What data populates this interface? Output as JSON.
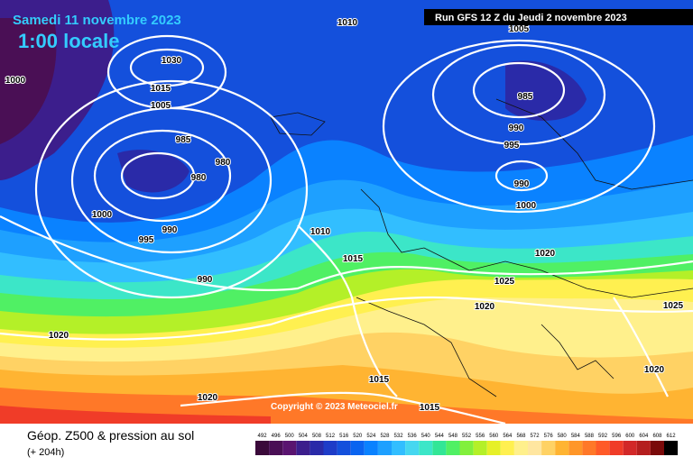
{
  "header": {
    "date": "Samedi 11 novembre 2023",
    "time": "1:00 locale",
    "run": "Run GFS 12 Z du Jeudi 2 novembre 2023"
  },
  "copyright": "Copyright © 2023 Meteociel.fr",
  "footer": {
    "title": "Géop. Z500 & pression au sol",
    "lead": "(+ 204h)"
  },
  "isobar_labels": [
    "1010",
    "1005",
    "1000",
    "1030",
    "1015",
    "1005",
    "985",
    "980",
    "980",
    "985",
    "990",
    "995",
    "990",
    "1000",
    "1000",
    "990",
    "995",
    "1010",
    "1015",
    "1020",
    "1025",
    "1020",
    "1025",
    "990",
    "1020",
    "1020",
    "1015",
    "1015",
    "1020"
  ],
  "colorbar": {
    "values": [
      492,
      496,
      500,
      504,
      508,
      512,
      516,
      520,
      524,
      528,
      532,
      536,
      540,
      544,
      548,
      552,
      556,
      560,
      564,
      568,
      572,
      576,
      580,
      584,
      588,
      592,
      596,
      600,
      604,
      608,
      612
    ],
    "colors": [
      "#3a0a3a",
      "#4a0f55",
      "#5a1470",
      "#3c1e8c",
      "#2a2aa8",
      "#1e3cc8",
      "#1450dc",
      "#0a64f0",
      "#0a82ff",
      "#1ea0ff",
      "#32beff",
      "#46d7f0",
      "#3ce6c8",
      "#32e696",
      "#50f064",
      "#82f03c",
      "#b4f028",
      "#e6f028",
      "#fff050",
      "#fff08c",
      "#ffe6a0",
      "#ffd264",
      "#ffb432",
      "#ff9628",
      "#ff7828",
      "#ff5a28",
      "#f03c28",
      "#d22828",
      "#b41e1e",
      "#7a0a0a",
      "#000000"
    ]
  }
}
